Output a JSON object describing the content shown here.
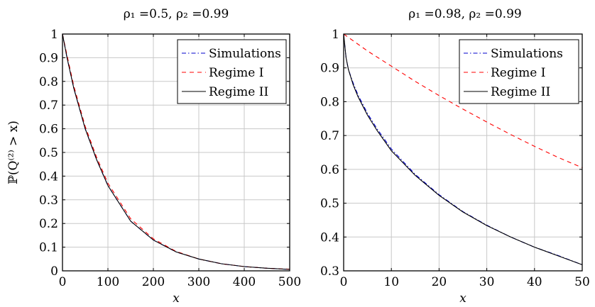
{
  "chart_data": [
    {
      "type": "line",
      "title": "ρ₁ =0.5, ρ₂ =0.99",
      "xlabel": "x",
      "ylabel": "ℙ(Q⁽²⁾ > x)",
      "xlim": [
        0,
        500
      ],
      "ylim": [
        0,
        1
      ],
      "xticks": [
        0,
        100,
        200,
        300,
        400,
        500
      ],
      "yticks": [
        0,
        0.1,
        0.2,
        0.3,
        0.4,
        0.5,
        0.6,
        0.7,
        0.8,
        0.9,
        1
      ],
      "grid": true,
      "legend_position": "top-right",
      "series": [
        {
          "name": "Simulations",
          "color": "#0000cc",
          "style": "dashdot",
          "x": [
            0,
            10,
            25,
            50,
            75,
            100,
            150,
            200,
            250,
            300,
            350,
            400,
            450,
            500
          ],
          "y": [
            1.0,
            0.9,
            0.77,
            0.6,
            0.47,
            0.36,
            0.21,
            0.13,
            0.08,
            0.05,
            0.03,
            0.018,
            0.011,
            0.006
          ]
        },
        {
          "name": "Regime I",
          "color": "#ff0000",
          "style": "dashed",
          "x": [
            0,
            10,
            25,
            50,
            75,
            100,
            150,
            200,
            250,
            300,
            350,
            400,
            450,
            500
          ],
          "y": [
            1.0,
            0.91,
            0.78,
            0.61,
            0.48,
            0.37,
            0.22,
            0.135,
            0.082,
            0.05,
            0.03,
            0.018,
            0.011,
            0.007
          ]
        },
        {
          "name": "Regime II",
          "color": "#000000",
          "style": "solid",
          "x": [
            0,
            10,
            25,
            50,
            75,
            100,
            150,
            200,
            250,
            300,
            350,
            400,
            450,
            500
          ],
          "y": [
            1.0,
            0.9,
            0.77,
            0.6,
            0.47,
            0.36,
            0.21,
            0.13,
            0.08,
            0.05,
            0.03,
            0.018,
            0.011,
            0.006
          ]
        }
      ]
    },
    {
      "type": "line",
      "title": "ρ₁ =0.98, ρ₂ =0.99",
      "xlabel": "x",
      "ylabel": "",
      "xlim": [
        0,
        50
      ],
      "ylim": [
        0.3,
        1
      ],
      "xticks": [
        0,
        10,
        20,
        30,
        40,
        50
      ],
      "yticks": [
        0.3,
        0.4,
        0.5,
        0.6,
        0.7,
        0.8,
        0.9,
        1
      ],
      "grid": true,
      "legend_position": "top-right",
      "series": [
        {
          "name": "Simulations",
          "color": "#0000cc",
          "style": "dashdot",
          "x": [
            0,
            0.5,
            1,
            2,
            3,
            5,
            7,
            10,
            15,
            20,
            25,
            30,
            35,
            40,
            45,
            50
          ],
          "y": [
            1.0,
            0.93,
            0.895,
            0.855,
            0.82,
            0.765,
            0.72,
            0.66,
            0.585,
            0.525,
            0.475,
            0.435,
            0.4,
            0.37,
            0.345,
            0.318
          ]
        },
        {
          "name": "Regime I",
          "color": "#ff0000",
          "style": "dashed",
          "x": [
            0,
            5,
            10,
            15,
            20,
            25,
            30,
            35,
            40,
            45,
            50
          ],
          "y": [
            1.0,
            0.95,
            0.905,
            0.86,
            0.818,
            0.778,
            0.74,
            0.703,
            0.668,
            0.635,
            0.605
          ]
        },
        {
          "name": "Regime II",
          "color": "#000000",
          "style": "solid",
          "x": [
            0,
            0.5,
            1,
            2,
            3,
            5,
            7,
            10,
            15,
            20,
            25,
            30,
            35,
            40,
            45,
            50
          ],
          "y": [
            1.0,
            0.93,
            0.895,
            0.85,
            0.815,
            0.76,
            0.715,
            0.655,
            0.582,
            0.523,
            0.474,
            0.434,
            0.4,
            0.37,
            0.344,
            0.318
          ]
        }
      ]
    }
  ]
}
